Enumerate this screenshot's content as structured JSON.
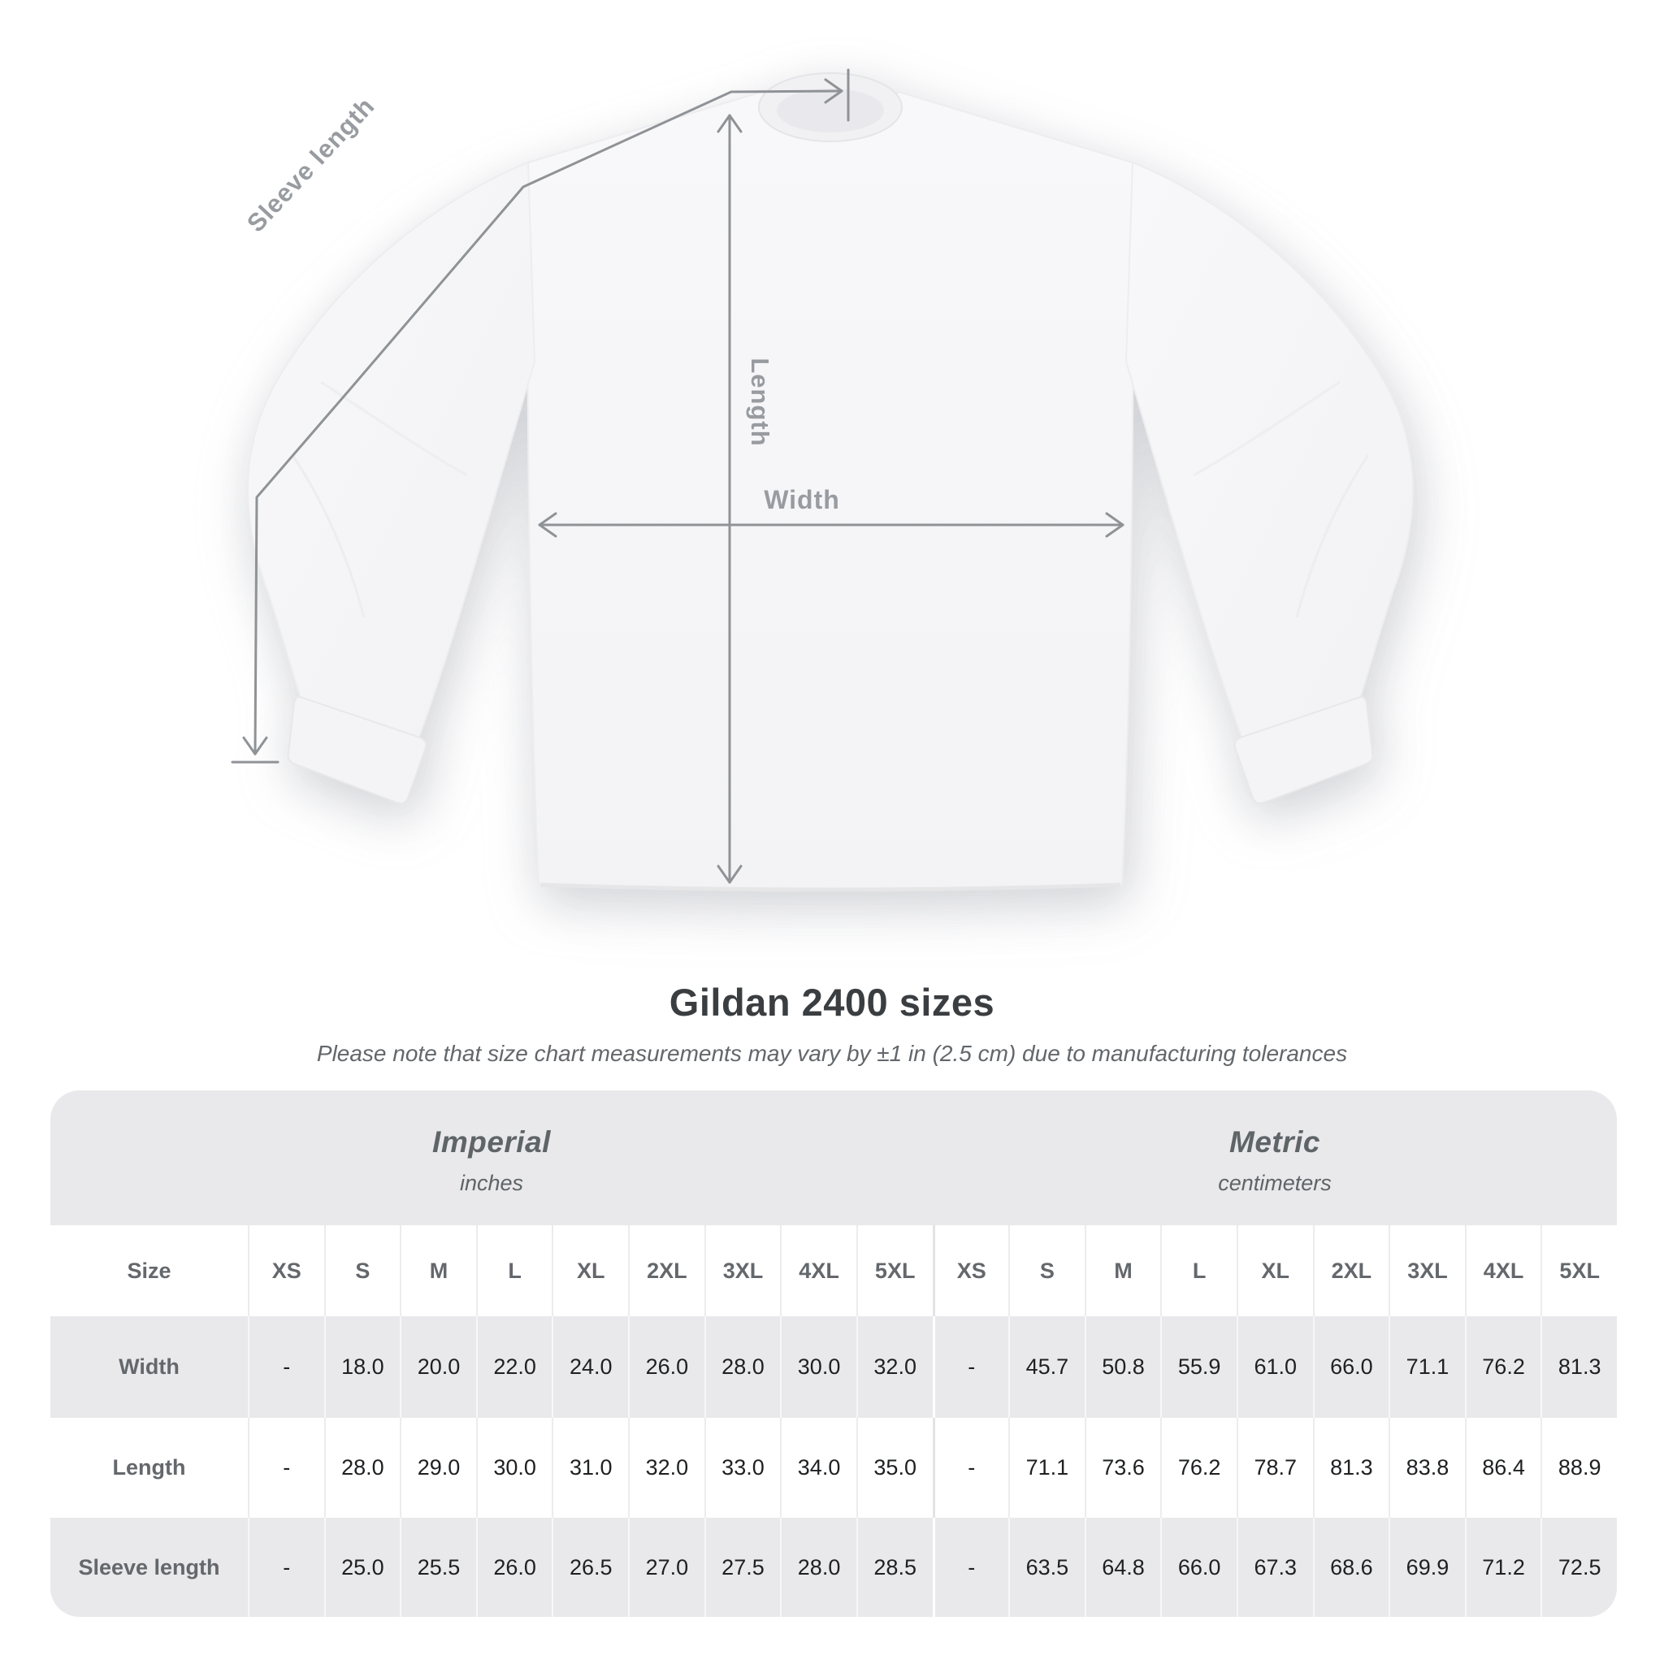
{
  "diagram": {
    "labels": {
      "sleeve_length": "Sleeve length",
      "length": "Length",
      "width": "Width"
    }
  },
  "title": "Gildan 2400 sizes",
  "subtitle": "Please note that size chart measurements may vary by ±1 in (2.5 cm) due to manufacturing tolerances",
  "table": {
    "size_header": "Size",
    "unit_groups": [
      {
        "name": "Imperial",
        "unit": "inches"
      },
      {
        "name": "Metric",
        "unit": "centimeters"
      }
    ],
    "sizes": [
      "XS",
      "S",
      "M",
      "L",
      "XL",
      "2XL",
      "3XL",
      "4XL",
      "5XL",
      "XS",
      "S",
      "M",
      "L",
      "XL",
      "2XL",
      "3XL",
      "4XL",
      "5XL"
    ],
    "rows": [
      {
        "label": "Width",
        "values": [
          "-",
          "18.0",
          "20.0",
          "22.0",
          "24.0",
          "26.0",
          "28.0",
          "30.0",
          "32.0",
          "-",
          "45.7",
          "50.8",
          "55.9",
          "61.0",
          "66.0",
          "71.1",
          "76.2",
          "81.3"
        ]
      },
      {
        "label": "Length",
        "values": [
          "-",
          "28.0",
          "29.0",
          "30.0",
          "31.0",
          "32.0",
          "33.0",
          "34.0",
          "35.0",
          "-",
          "71.1",
          "73.6",
          "76.2",
          "78.7",
          "81.3",
          "83.8",
          "86.4",
          "88.9"
        ]
      },
      {
        "label": "Sleeve length",
        "values": [
          "-",
          "25.0",
          "25.5",
          "26.0",
          "26.5",
          "27.0",
          "27.5",
          "28.0",
          "28.5",
          "-",
          "63.5",
          "64.8",
          "66.0",
          "67.3",
          "68.6",
          "69.9",
          "71.2",
          "72.5"
        ]
      }
    ]
  },
  "colors": {
    "measure_line": "#8f9296",
    "measure_label": "#989ba0",
    "table_band_bg": "#e9e9eb",
    "title_text": "#3b3e41",
    "muted_text": "#63676b",
    "value_text": "#1e2022"
  }
}
